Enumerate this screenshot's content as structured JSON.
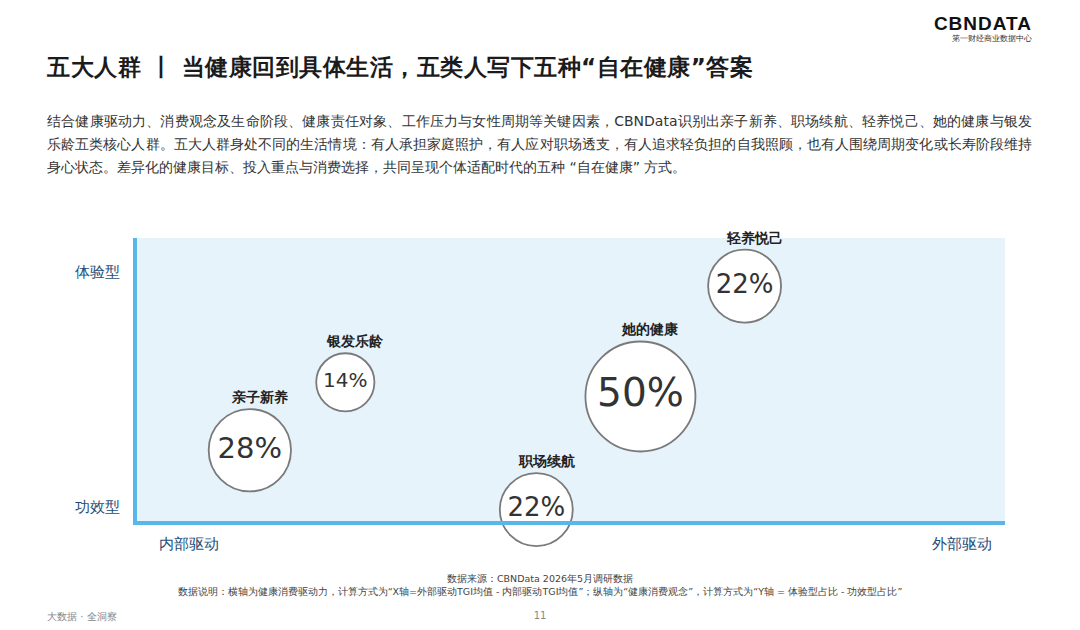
{
  "header": {
    "logo": "CBNDATA",
    "logo_subtitle": "第一财经商业数据中心"
  },
  "chart_data": {
    "type": "scatter",
    "title": "五大人群 丨 当健康回到具体生活，五类人写下五种“自在健康”答案",
    "subtitle": "结合健康驱动力、消费观念及生命阶段、健康责任对象、工作压力与女性周期等关键因素，CBNData识别出亲子新养、职场续航、轻养悦己、她的健康与银发乐龄五类核心人群。五大人群身处不同的生活情境：有人承担家庭照护，有人应对职场透支，有人追求轻负担的自我照顾，也有人围绕周期变化或长寿阶段维持身心状态。差异化的健康目标、投入重点与消费选择，共同呈现个体适配时代的五种 “自在健康” 方式。",
    "names": [
      "亲子新养",
      "银发乐龄",
      "她的健康",
      "职场续航",
      "轻养悦己"
    ],
    "x": [
      13,
      24,
      58,
      46,
      70
    ],
    "y": [
      25,
      49,
      44,
      4,
      83
    ],
    "values": [
      28,
      14,
      50,
      22,
      22
    ],
    "value_labels": [
      "28%",
      "14%",
      "50%",
      "22%",
      "22%"
    ],
    "data_labels": true,
    "marker": "circle",
    "color": "#ffffff",
    "xlim": [
      0,
      100
    ],
    "ylim": [
      0,
      100
    ],
    "xticks": [
      {
        "value": 6,
        "label": "内部驱动"
      },
      {
        "value": 95,
        "label": "外部驱动"
      }
    ],
    "yticks": [
      {
        "value": 5,
        "label": "功效型"
      },
      {
        "value": 88,
        "label": "体验型"
      }
    ],
    "grid": false,
    "source": "数据来源：CBNData 2026年5月调研数据",
    "note": "数据说明：横轴为健康消费驱动力，计算方式为“X轴=外部驱动TGI均值 - 内部驱动TGI均值”；纵轴为“健康消费观念”，计算方式为“Y轴 = 体验型占比 - 功效型占比”"
  },
  "footer": {
    "left": "大数据 · 全洞察",
    "page": "11"
  }
}
